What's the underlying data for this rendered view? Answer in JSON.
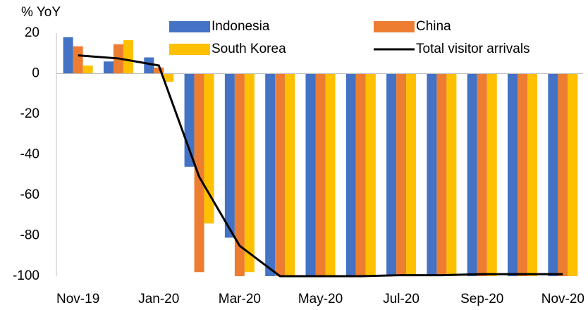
{
  "chart_data": {
    "type": "bar",
    "y_axis_label": "% YoY",
    "categories": [
      "Nov-19",
      null,
      "Jan-20",
      null,
      "Mar-20",
      null,
      "May-20",
      null,
      "Jul-20",
      null,
      "Sep-20",
      null,
      "Nov-20"
    ],
    "series": [
      {
        "name": "Indonesia",
        "color": "#4472c4",
        "values": [
          18,
          6,
          8,
          -46,
          -81,
          -100,
          -100,
          -100,
          -100,
          -100,
          -100,
          -100,
          -100
        ]
      },
      {
        "name": "China",
        "color": "#ed7d31",
        "values": [
          13.5,
          14.5,
          3,
          -98,
          -100,
          -100,
          -100,
          -100,
          -100,
          -100,
          -100,
          -100,
          -100
        ]
      },
      {
        "name": "South Korea",
        "color": "#ffc000",
        "values": [
          4,
          16.5,
          -4,
          -74,
          -98,
          -100,
          -100,
          -100,
          -100,
          -100,
          -100,
          -100,
          -100
        ]
      },
      {
        "name": "Total visitor arrivals",
        "type": "line",
        "color": "#000000",
        "values": [
          9,
          7.5,
          4,
          -51,
          -85,
          -100,
          -100,
          -100,
          -99.5,
          -99.5,
          -99,
          -99,
          -99
        ]
      }
    ],
    "ylim": [
      -100,
      20
    ],
    "yticks": [
      20,
      0,
      -20,
      -40,
      -60,
      -80,
      -100
    ],
    "grid": false
  }
}
